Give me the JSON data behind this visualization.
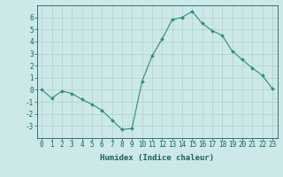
{
  "x": [
    0,
    1,
    2,
    3,
    4,
    5,
    6,
    7,
    8,
    9,
    10,
    11,
    12,
    13,
    14,
    15,
    16,
    17,
    18,
    19,
    20,
    21,
    22,
    23
  ],
  "y": [
    0.0,
    -0.7,
    -0.1,
    -0.3,
    -0.8,
    -1.2,
    -1.7,
    -2.5,
    -3.3,
    -3.2,
    0.7,
    2.8,
    4.2,
    5.8,
    6.0,
    6.5,
    5.5,
    4.9,
    4.5,
    3.2,
    2.5,
    1.8,
    1.2,
    0.1
  ],
  "line_color": "#2e8b7a",
  "marker": "D",
  "marker_size": 1.8,
  "bg_color": "#cce8e8",
  "grid_color": "#b0d0d0",
  "axis_color": "#1a6060",
  "tick_color": "#1a6060",
  "xlabel": "Humidex (Indice chaleur)",
  "ylim": [
    -4,
    7
  ],
  "xlim": [
    -0.5,
    23.5
  ],
  "yticks": [
    -3,
    -2,
    -1,
    0,
    1,
    2,
    3,
    4,
    5,
    6
  ],
  "xticks": [
    0,
    1,
    2,
    3,
    4,
    5,
    6,
    7,
    8,
    9,
    10,
    11,
    12,
    13,
    14,
    15,
    16,
    17,
    18,
    19,
    20,
    21,
    22,
    23
  ],
  "xlabel_fontsize": 6.5,
  "tick_fontsize": 5.5,
  "linewidth": 0.8
}
